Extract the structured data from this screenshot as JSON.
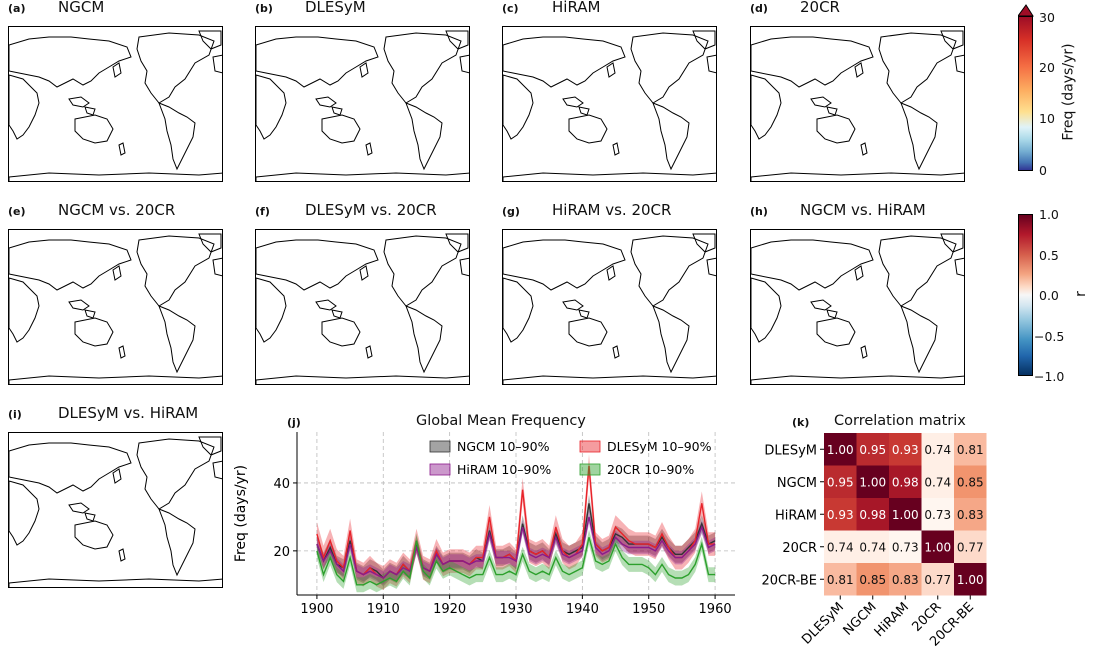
{
  "panels_top": [
    {
      "tag": "(a)",
      "title": "NGCM"
    },
    {
      "tag": "(b)",
      "title": "DLESyM"
    },
    {
      "tag": "(c)",
      "title": "HiRAM"
    },
    {
      "tag": "(d)",
      "title": "20CR"
    }
  ],
  "panels_mid": [
    {
      "tag": "(e)",
      "title": "NGCM vs. 20CR"
    },
    {
      "tag": "(f)",
      "title": "DLESyM vs. 20CR"
    },
    {
      "tag": "(g)",
      "title": "HiRAM vs. 20CR"
    },
    {
      "tag": "(h)",
      "title": "NGCM vs. HiRAM"
    }
  ],
  "panel_i": {
    "tag": "(i)",
    "title": "DLESyM vs. HiRAM"
  },
  "colorbar_freq": {
    "label": "Freq (days/yr)",
    "ticks": [
      "30",
      "20",
      "10",
      "0"
    ]
  },
  "colorbar_r": {
    "label": "r",
    "ticks": [
      "1.0",
      "0.5",
      "0.0",
      "−0.5",
      "−1.0"
    ]
  },
  "colors": {
    "accent_red": "#b2182b",
    "accent_blue": "#2166ac",
    "ngcm": "#333333",
    "dlesym": "#e8232a",
    "hiram": "#8b1a8b",
    "cr20": "#2ca02c"
  },
  "chart_data": [
    {
      "type": "line",
      "tag": "(j)",
      "title": "Global Mean Frequency",
      "xlabel": "",
      "ylabel": "Freq (days/yr)",
      "xlim": [
        1897,
        1963
      ],
      "ylim": [
        7,
        55
      ],
      "xticks": [
        "1900",
        "1910",
        "1920",
        "1930",
        "1940",
        "1950",
        "1960"
      ],
      "yticks": [
        "20",
        "40"
      ],
      "legend": [
        "NGCM 10–90%",
        "DLESyM 10–90%",
        "HiRAM 10–90%",
        "20CR 10–90%"
      ],
      "x": [
        1900,
        1901,
        1902,
        1903,
        1904,
        1905,
        1906,
        1907,
        1908,
        1909,
        1910,
        1911,
        1912,
        1913,
        1914,
        1915,
        1916,
        1917,
        1918,
        1919,
        1920,
        1921,
        1922,
        1923,
        1924,
        1925,
        1926,
        1927,
        1928,
        1929,
        1930,
        1931,
        1932,
        1933,
        1934,
        1935,
        1936,
        1937,
        1938,
        1939,
        1940,
        1941,
        1942,
        1943,
        1944,
        1945,
        1946,
        1947,
        1948,
        1949,
        1950,
        1951,
        1952,
        1953,
        1954,
        1955,
        1956,
        1957,
        1958,
        1959,
        1960
      ],
      "series": [
        {
          "name": "NGCM",
          "values": [
            22,
            17,
            21,
            16,
            15,
            23,
            14,
            13,
            15,
            14,
            12,
            14,
            13,
            16,
            14,
            22,
            15,
            14,
            19,
            16,
            17,
            17,
            17,
            16,
            18,
            17,
            26,
            18,
            18,
            19,
            17,
            28,
            20,
            19,
            20,
            18,
            25,
            20,
            19,
            20,
            21,
            34,
            22,
            20,
            21,
            25,
            24,
            22,
            22,
            22,
            22,
            21,
            24,
            21,
            19,
            19,
            21,
            23,
            28,
            22,
            23
          ],
          "band": 2.5
        },
        {
          "name": "DLESyM",
          "values": [
            25,
            18,
            23,
            17,
            15,
            26,
            14,
            13,
            15,
            13,
            12,
            14,
            13,
            16,
            14,
            23,
            15,
            14,
            20,
            16,
            17,
            17,
            17,
            16,
            18,
            18,
            30,
            18,
            18,
            19,
            17,
            38,
            20,
            19,
            20,
            18,
            27,
            20,
            18,
            19,
            22,
            45,
            22,
            20,
            21,
            27,
            25,
            23,
            22,
            22,
            22,
            21,
            25,
            21,
            18,
            18,
            20,
            23,
            34,
            22,
            22
          ],
          "band": 3.5
        },
        {
          "name": "HiRAM",
          "values": [
            22,
            17,
            20,
            16,
            14,
            22,
            14,
            13,
            14,
            13,
            12,
            14,
            13,
            15,
            14,
            21,
            15,
            14,
            19,
            16,
            17,
            17,
            17,
            16,
            17,
            17,
            25,
            18,
            18,
            18,
            17,
            27,
            19,
            18,
            19,
            18,
            24,
            19,
            18,
            19,
            20,
            30,
            21,
            19,
            20,
            24,
            22,
            21,
            21,
            21,
            21,
            20,
            23,
            20,
            18,
            18,
            20,
            22,
            27,
            21,
            22
          ],
          "band": 2.0
        },
        {
          "name": "20CR",
          "values": [
            20,
            13,
            18,
            13,
            11,
            18,
            10,
            10,
            11,
            10,
            11,
            12,
            11,
            14,
            12,
            23,
            14,
            12,
            17,
            14,
            15,
            14,
            13,
            12,
            13,
            13,
            18,
            13,
            13,
            14,
            13,
            19,
            14,
            13,
            14,
            13,
            18,
            14,
            13,
            14,
            15,
            24,
            17,
            16,
            17,
            22,
            18,
            16,
            16,
            16,
            15,
            13,
            16,
            13,
            12,
            12,
            13,
            16,
            22,
            13,
            13
          ],
          "band": 2.2
        }
      ]
    },
    {
      "type": "heatmap",
      "tag": "(k)",
      "title": "Correlation matrix",
      "rows": [
        "DLESyM",
        "NGCM",
        "HiRAM",
        "20CR",
        "20CR-BE"
      ],
      "cols": [
        "DLESyM",
        "NGCM",
        "HiRAM",
        "20CR",
        "20CR-BE"
      ],
      "values": [
        [
          1.0,
          0.95,
          0.93,
          0.74,
          0.81
        ],
        [
          0.95,
          1.0,
          0.98,
          0.74,
          0.85
        ],
        [
          0.93,
          0.98,
          1.0,
          0.73,
          0.83
        ],
        [
          0.74,
          0.74,
          0.73,
          1.0,
          0.77
        ],
        [
          0.81,
          0.85,
          0.83,
          0.77,
          1.0
        ]
      ],
      "labels": [
        [
          "1.00",
          "0.95",
          "0.93",
          "0.74",
          "0.81"
        ],
        [
          "0.95",
          "1.00",
          "0.98",
          "0.74",
          "0.85"
        ],
        [
          "0.93",
          "0.98",
          "1.00",
          "0.73",
          "0.83"
        ],
        [
          "0.74",
          "0.74",
          "0.73",
          "1.00",
          "0.77"
        ],
        [
          "0.81",
          "0.85",
          "0.83",
          "0.77",
          "1.00"
        ]
      ]
    }
  ]
}
